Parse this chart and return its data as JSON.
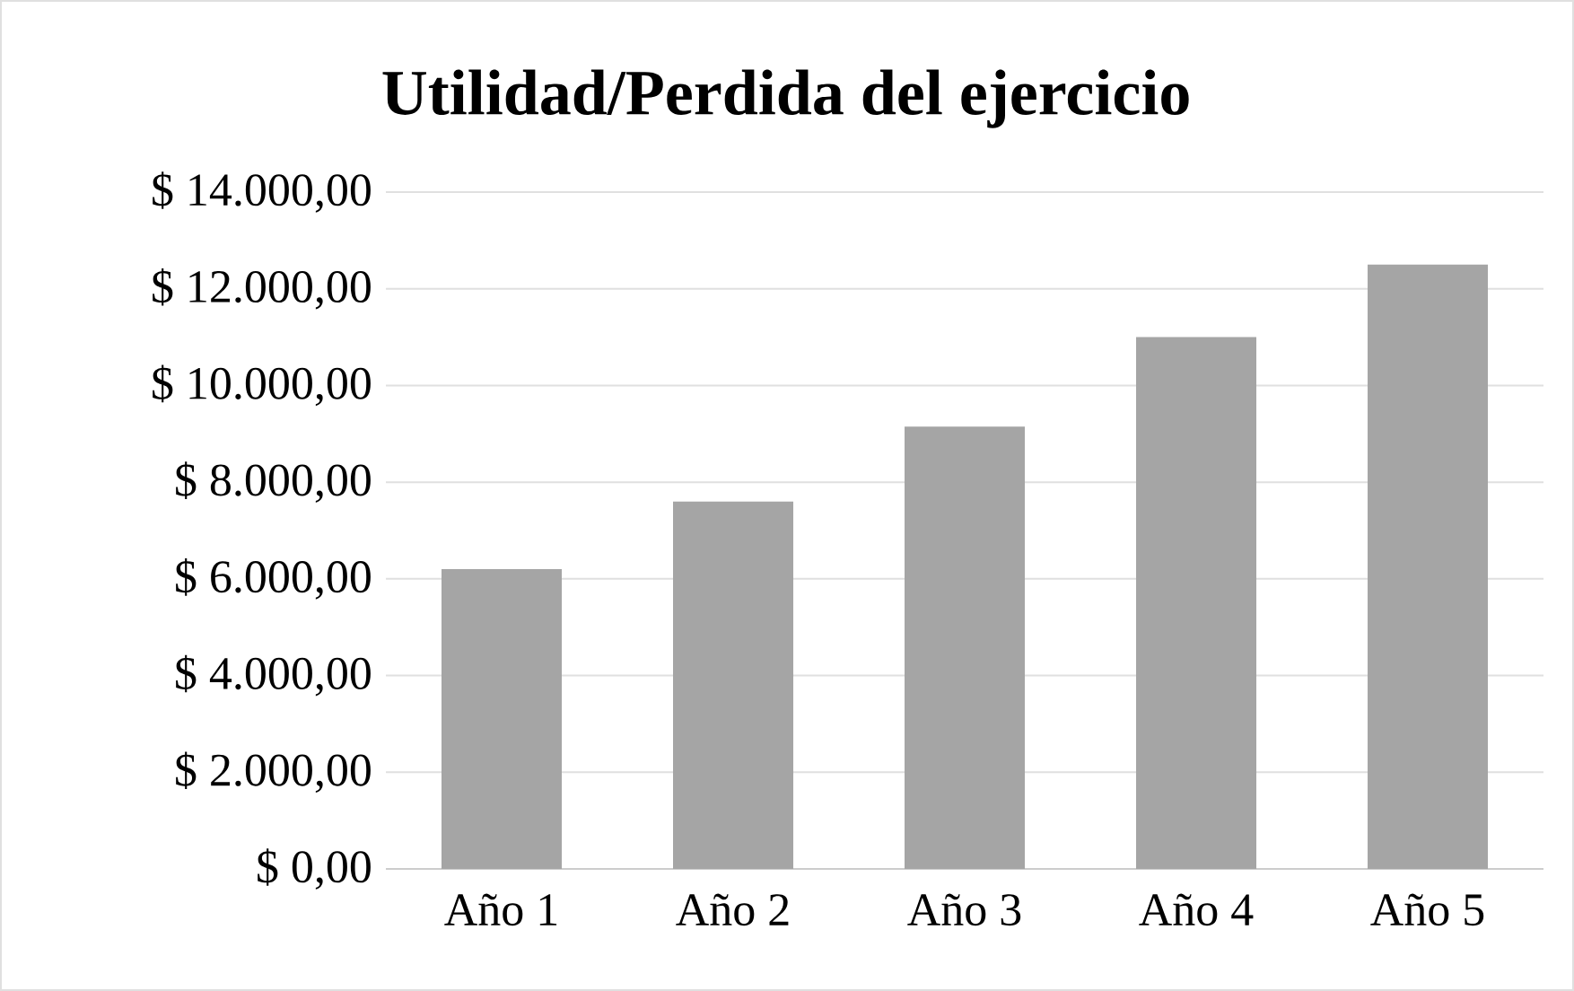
{
  "chart_data": {
    "type": "bar",
    "title": "Utilidad/Perdida del ejercicio",
    "categories": [
      "Año 1",
      "Año 2",
      "Año 3",
      "Año 4",
      "Año 5"
    ],
    "values": [
      6200,
      7600,
      9150,
      11000,
      12500
    ],
    "color": "#a5a5a5",
    "ylim": [
      0,
      14000
    ],
    "yticks": [
      {
        "value": 0,
        "label": "$ 0,00"
      },
      {
        "value": 2000,
        "label": "$ 2.000,00"
      },
      {
        "value": 4000,
        "label": "$ 4.000,00"
      },
      {
        "value": 6000,
        "label": "$ 6.000,00"
      },
      {
        "value": 8000,
        "label": "$ 8.000,00"
      },
      {
        "value": 10000,
        "label": "$ 10.000,00"
      },
      {
        "value": 12000,
        "label": "$ 12.000,00"
      },
      {
        "value": 14000,
        "label": "$ 14.000,00"
      }
    ],
    "grid": "y"
  }
}
